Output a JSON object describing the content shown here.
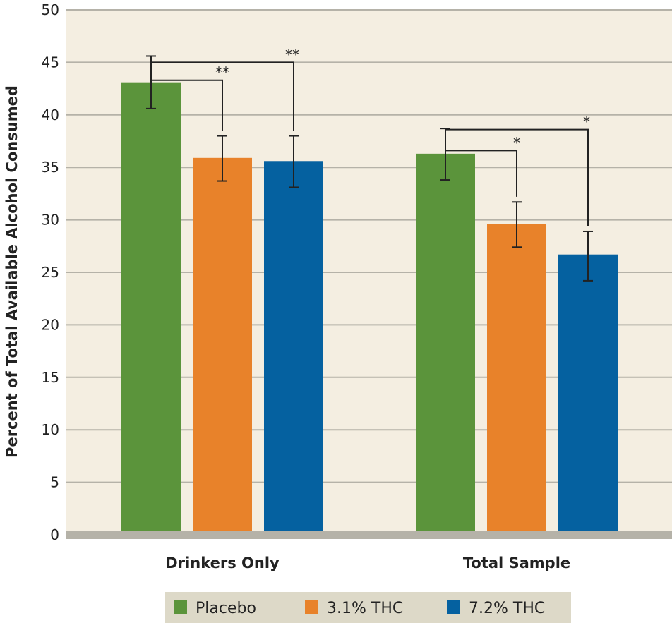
{
  "chart_data": {
    "type": "bar",
    "ylabel": "Percent of Total Available Alcohol Consumed",
    "xlabel": "",
    "ylim": [
      0,
      50
    ],
    "yticks": [
      0,
      5,
      10,
      15,
      20,
      25,
      30,
      35,
      40,
      45,
      50
    ],
    "grid": true,
    "legend_position": "bottom-center",
    "categories": [
      "Drinkers Only",
      "Total Sample"
    ],
    "series": [
      {
        "name": "Placebo",
        "color": "#5b943b",
        "values": [
          43.1,
          36.3
        ],
        "error_low": [
          40.6,
          33.8
        ],
        "error_high": [
          45.6,
          38.7
        ]
      },
      {
        "name": "3.1% THC",
        "color": "#e8822a",
        "values": [
          35.9,
          29.6
        ],
        "error_low": [
          33.7,
          27.4
        ],
        "error_high": [
          38.0,
          31.7
        ]
      },
      {
        "name": "7.2% THC",
        "color": "#0561a0",
        "values": [
          35.6,
          26.7
        ],
        "error_low": [
          33.1,
          24.2
        ],
        "error_high": [
          38.0,
          28.9
        ]
      }
    ],
    "significance": [
      {
        "category": 0,
        "from_series": 0,
        "to_series": 1,
        "label": "**"
      },
      {
        "category": 0,
        "from_series": 0,
        "to_series": 2,
        "label": "**"
      },
      {
        "category": 1,
        "from_series": 0,
        "to_series": 1,
        "label": "*"
      },
      {
        "category": 1,
        "from_series": 0,
        "to_series": 2,
        "label": "*"
      }
    ],
    "colors": {
      "plot_background": "#f4eee1",
      "legend_background": "#ddd9c8",
      "grid": "#b5b2a8",
      "baseline": "#b5b2a8"
    }
  }
}
